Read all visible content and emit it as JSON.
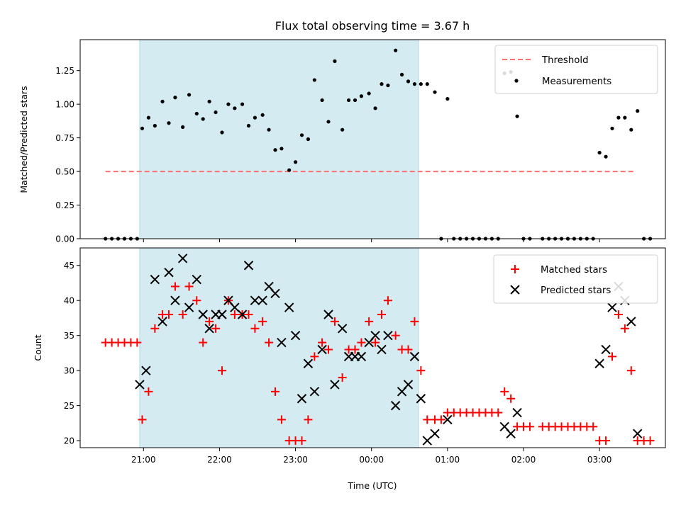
{
  "title": "Flux total observing time = 3.67 h",
  "colors": {
    "shade": "#add8e6",
    "threshold": "#ff6f6f",
    "measurement": "#000000",
    "matched": "#ff0000",
    "predicted": "#000000"
  },
  "chart_data": [
    {
      "type": "scatter",
      "ylabel": "Matched/Predicted stars",
      "ylim": [
        0,
        1.48
      ],
      "yticks": [
        0.0,
        0.25,
        0.5,
        0.75,
        1.0,
        1.25
      ],
      "ytick_labels": [
        "0.00",
        "0.25",
        "0.50",
        "0.75",
        "1.00",
        "1.25"
      ],
      "xlim": [
        "20:10",
        "03:52"
      ],
      "grid": false,
      "legend_position": "top-right",
      "shaded_span": [
        "20:57",
        "00:37"
      ],
      "series": [
        {
          "name": "Threshold",
          "kind": "dashed-line",
          "x": [
            "20:30",
            "03:27"
          ],
          "y": [
            0.5,
            0.5
          ]
        },
        {
          "name": "Measurements",
          "kind": "dots",
          "points": [
            [
              "20:30",
              0
            ],
            [
              "20:35",
              0
            ],
            [
              "20:40",
              0
            ],
            [
              "20:45",
              0
            ],
            [
              "20:50",
              0
            ],
            [
              "20:55",
              0
            ],
            [
              "20:59",
              0.82
            ],
            [
              "21:04",
              0.9
            ],
            [
              "21:09",
              0.84
            ],
            [
              "21:15",
              1.02
            ],
            [
              "21:20",
              0.86
            ],
            [
              "21:25",
              1.05
            ],
            [
              "21:31",
              0.83
            ],
            [
              "21:36",
              1.07
            ],
            [
              "21:42",
              0.93
            ],
            [
              "21:47",
              0.89
            ],
            [
              "21:52",
              1.02
            ],
            [
              "21:57",
              0.94
            ],
            [
              "22:02",
              0.79
            ],
            [
              "22:07",
              1.0
            ],
            [
              "22:12",
              0.97
            ],
            [
              "22:18",
              1.0
            ],
            [
              "22:23",
              0.84
            ],
            [
              "22:28",
              0.9
            ],
            [
              "22:34",
              0.92
            ],
            [
              "22:39",
              0.81
            ],
            [
              "22:44",
              0.66
            ],
            [
              "22:49",
              0.67
            ],
            [
              "22:55",
              0.51
            ],
            [
              "23:00",
              0.57
            ],
            [
              "23:05",
              0.77
            ],
            [
              "23:10",
              0.74
            ],
            [
              "23:15",
              1.18
            ],
            [
              "23:21",
              1.03
            ],
            [
              "23:26",
              0.87
            ],
            [
              "23:31",
              1.32
            ],
            [
              "23:37",
              0.81
            ],
            [
              "23:42",
              1.03
            ],
            [
              "23:47",
              1.03
            ],
            [
              "23:52",
              1.06
            ],
            [
              "23:58",
              1.08
            ],
            [
              "00:03",
              0.97
            ],
            [
              "00:08",
              1.15
            ],
            [
              "00:13",
              1.14
            ],
            [
              "00:19",
              1.4
            ],
            [
              "00:24",
              1.22
            ],
            [
              "00:29",
              1.17
            ],
            [
              "00:34",
              1.15
            ],
            [
              "00:39",
              1.15
            ],
            [
              "00:44",
              1.15
            ],
            [
              "00:50",
              1.09
            ],
            [
              "00:55",
              0
            ],
            [
              "01:00",
              1.04
            ],
            [
              "01:05",
              0
            ],
            [
              "01:10",
              0
            ],
            [
              "01:15",
              0
            ],
            [
              "01:20",
              0
            ],
            [
              "01:25",
              0
            ],
            [
              "01:30",
              0
            ],
            [
              "01:35",
              0
            ],
            [
              "01:40",
              0
            ],
            [
              "01:45",
              1.23
            ],
            [
              "01:50",
              1.24
            ],
            [
              "01:55",
              0.91
            ],
            [
              "02:00",
              0
            ],
            [
              "02:05",
              0
            ],
            [
              "02:15",
              0
            ],
            [
              "02:20",
              0
            ],
            [
              "02:25",
              0
            ],
            [
              "02:30",
              0
            ],
            [
              "02:35",
              0
            ],
            [
              "02:40",
              0
            ],
            [
              "02:45",
              0
            ],
            [
              "02:50",
              0
            ],
            [
              "02:55",
              0
            ],
            [
              "03:00",
              0.64
            ],
            [
              "03:05",
              0.61
            ],
            [
              "03:10",
              0.82
            ],
            [
              "03:15",
              0.9
            ],
            [
              "03:20",
              0.9
            ],
            [
              "03:25",
              0.81
            ],
            [
              "03:30",
              0.95
            ],
            [
              "03:35",
              0
            ],
            [
              "03:40",
              0
            ]
          ]
        }
      ]
    },
    {
      "type": "scatter",
      "ylabel": "Count",
      "xlabel": "Time (UTC)",
      "ylim": [
        19,
        47.5
      ],
      "yticks": [
        20,
        25,
        30,
        35,
        40,
        45
      ],
      "ytick_labels": [
        "20",
        "25",
        "30",
        "35",
        "40",
        "45"
      ],
      "xlim": [
        "20:10",
        "03:52"
      ],
      "xticks": [
        "21:00",
        "22:00",
        "23:00",
        "00:00",
        "01:00",
        "02:00",
        "03:00"
      ],
      "xtick_labels": [
        "21:00",
        "22:00",
        "23:00",
        "00:00",
        "01:00",
        "02:00",
        "03:00"
      ],
      "grid": false,
      "legend_position": "top-right",
      "shaded_span": [
        "20:57",
        "00:37"
      ],
      "series": [
        {
          "name": "Matched stars",
          "marker": "plus",
          "points": [
            [
              "20:30",
              34
            ],
            [
              "20:35",
              34
            ],
            [
              "20:40",
              34
            ],
            [
              "20:45",
              34
            ],
            [
              "20:50",
              34
            ],
            [
              "20:55",
              34
            ],
            [
              "20:59",
              23
            ],
            [
              "21:04",
              27
            ],
            [
              "21:09",
              36
            ],
            [
              "21:15",
              38
            ],
            [
              "21:20",
              38
            ],
            [
              "21:25",
              42
            ],
            [
              "21:31",
              38
            ],
            [
              "21:36",
              42
            ],
            [
              "21:42",
              40
            ],
            [
              "21:47",
              34
            ],
            [
              "21:52",
              37
            ],
            [
              "21:57",
              36
            ],
            [
              "22:02",
              30
            ],
            [
              "22:07",
              40
            ],
            [
              "22:12",
              38
            ],
            [
              "22:18",
              38
            ],
            [
              "22:23",
              38
            ],
            [
              "22:28",
              36
            ],
            [
              "22:34",
              37
            ],
            [
              "22:39",
              34
            ],
            [
              "22:44",
              27
            ],
            [
              "22:49",
              23
            ],
            [
              "22:55",
              20
            ],
            [
              "23:00",
              20
            ],
            [
              "23:05",
              20
            ],
            [
              "23:10",
              23
            ],
            [
              "23:15",
              32
            ],
            [
              "23:21",
              34
            ],
            [
              "23:26",
              33
            ],
            [
              "23:31",
              37
            ],
            [
              "23:37",
              29
            ],
            [
              "23:42",
              33
            ],
            [
              "23:47",
              33
            ],
            [
              "23:52",
              34
            ],
            [
              "23:58",
              37
            ],
            [
              "00:03",
              34
            ],
            [
              "00:08",
              38
            ],
            [
              "00:13",
              40
            ],
            [
              "00:19",
              35
            ],
            [
              "00:24",
              33
            ],
            [
              "00:29",
              33
            ],
            [
              "00:34",
              37
            ],
            [
              "00:39",
              30
            ],
            [
              "00:44",
              23
            ],
            [
              "00:50",
              23
            ],
            [
              "00:55",
              23
            ],
            [
              "01:00",
              24
            ],
            [
              "01:05",
              24
            ],
            [
              "01:10",
              24
            ],
            [
              "01:15",
              24
            ],
            [
              "01:20",
              24
            ],
            [
              "01:25",
              24
            ],
            [
              "01:30",
              24
            ],
            [
              "01:35",
              24
            ],
            [
              "01:40",
              24
            ],
            [
              "01:45",
              27
            ],
            [
              "01:50",
              26
            ],
            [
              "01:55",
              22
            ],
            [
              "02:00",
              22
            ],
            [
              "02:05",
              22
            ],
            [
              "02:15",
              22
            ],
            [
              "02:20",
              22
            ],
            [
              "02:25",
              22
            ],
            [
              "02:30",
              22
            ],
            [
              "02:35",
              22
            ],
            [
              "02:40",
              22
            ],
            [
              "02:45",
              22
            ],
            [
              "02:50",
              22
            ],
            [
              "02:55",
              22
            ],
            [
              "03:00",
              20
            ],
            [
              "03:05",
              20
            ],
            [
              "03:10",
              32
            ],
            [
              "03:15",
              38
            ],
            [
              "03:20",
              36
            ],
            [
              "03:25",
              30
            ],
            [
              "03:30",
              20
            ],
            [
              "03:35",
              20
            ],
            [
              "03:40",
              20
            ]
          ]
        },
        {
          "name": "Predicted stars",
          "marker": "cross",
          "points": [
            [
              "20:57",
              28
            ],
            [
              "21:02",
              30
            ],
            [
              "21:09",
              43
            ],
            [
              "21:15",
              37
            ],
            [
              "21:20",
              44
            ],
            [
              "21:25",
              40
            ],
            [
              "21:31",
              46
            ],
            [
              "21:36",
              39
            ],
            [
              "21:42",
              43
            ],
            [
              "21:47",
              38
            ],
            [
              "21:52",
              36
            ],
            [
              "21:57",
              38
            ],
            [
              "22:02",
              38
            ],
            [
              "22:07",
              40
            ],
            [
              "22:12",
              39
            ],
            [
              "22:18",
              38
            ],
            [
              "22:23",
              45
            ],
            [
              "22:28",
              40
            ],
            [
              "22:34",
              40
            ],
            [
              "22:39",
              42
            ],
            [
              "22:44",
              41
            ],
            [
              "22:49",
              34
            ],
            [
              "22:55",
              39
            ],
            [
              "23:00",
              35
            ],
            [
              "23:05",
              26
            ],
            [
              "23:10",
              31
            ],
            [
              "23:15",
              27
            ],
            [
              "23:21",
              33
            ],
            [
              "23:26",
              38
            ],
            [
              "23:31",
              28
            ],
            [
              "23:37",
              36
            ],
            [
              "23:42",
              32
            ],
            [
              "23:47",
              32
            ],
            [
              "23:52",
              32
            ],
            [
              "23:58",
              34
            ],
            [
              "00:03",
              35
            ],
            [
              "00:08",
              33
            ],
            [
              "00:13",
              35
            ],
            [
              "00:19",
              25
            ],
            [
              "00:24",
              27
            ],
            [
              "00:29",
              28
            ],
            [
              "00:34",
              32
            ],
            [
              "00:39",
              26
            ],
            [
              "00:44",
              20
            ],
            [
              "00:50",
              21
            ],
            [
              "01:00",
              23
            ],
            [
              "01:45",
              22
            ],
            [
              "01:50",
              21
            ],
            [
              "01:55",
              24
            ],
            [
              "03:00",
              31
            ],
            [
              "03:05",
              33
            ],
            [
              "03:10",
              39
            ],
            [
              "03:15",
              42
            ],
            [
              "03:20",
              40
            ],
            [
              "03:25",
              37
            ],
            [
              "03:30",
              21
            ]
          ]
        }
      ]
    }
  ]
}
